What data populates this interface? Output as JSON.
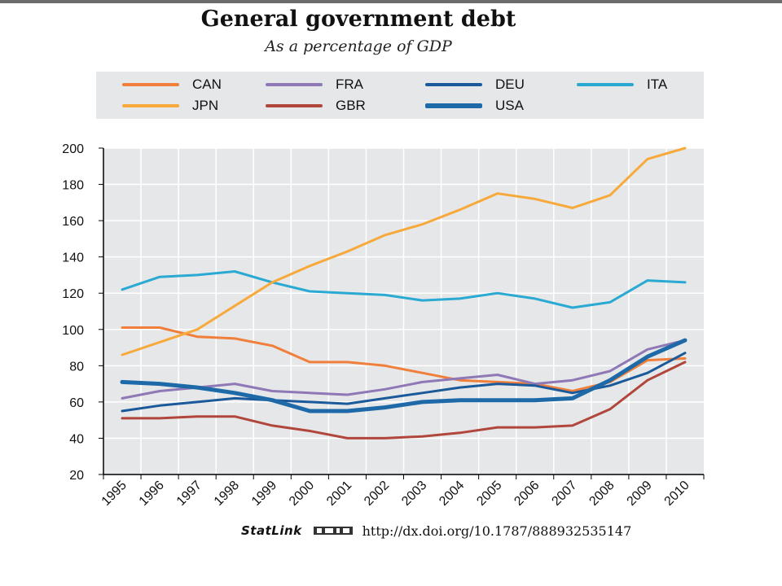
{
  "header": {
    "title": "General government debt",
    "subtitle": "As a percentage of GDP"
  },
  "footer": {
    "statlink_label": "StatLink",
    "url": "http://dx.doi.org/10.1787/888932535147"
  },
  "chart_data": {
    "type": "line",
    "title": "General government debt",
    "subtitle": "As a percentage of GDP",
    "xlabel": "",
    "ylabel": "",
    "x": [
      "1995",
      "1996",
      "1997",
      "1998",
      "1999",
      "2000",
      "2001",
      "2002",
      "2003",
      "2004",
      "2005",
      "2006",
      "2007",
      "2008",
      "2009",
      "2010"
    ],
    "ylim": [
      20,
      200
    ],
    "yticks": [
      20,
      40,
      60,
      80,
      100,
      120,
      140,
      160,
      180,
      200
    ],
    "grid": true,
    "legend_position": "top",
    "series": [
      {
        "name": "CAN",
        "color": "#f07f3c",
        "width": 3,
        "values": [
          101,
          101,
          96,
          95,
          91,
          82,
          82,
          80,
          76,
          72,
          71,
          70,
          66,
          71,
          83,
          84
        ]
      },
      {
        "name": "FRA",
        "color": "#8e78b6",
        "width": 3,
        "values": [
          62,
          66,
          68,
          70,
          66,
          65,
          64,
          67,
          71,
          73,
          75,
          70,
          72,
          77,
          89,
          94
        ]
      },
      {
        "name": "DEU",
        "color": "#1b5a9a",
        "width": 3,
        "values": [
          55,
          58,
          60,
          62,
          61,
          60,
          59,
          62,
          65,
          68,
          70,
          69,
          65,
          69,
          76,
          87
        ]
      },
      {
        "name": "ITA",
        "color": "#2aa9d2",
        "width": 3,
        "values": [
          122,
          129,
          130,
          132,
          126,
          121,
          120,
          119,
          116,
          117,
          120,
          117,
          112,
          115,
          127,
          126
        ]
      },
      {
        "name": "JPN",
        "color": "#f7a93b",
        "width": 3,
        "values": [
          86,
          93,
          100,
          113,
          126,
          135,
          143,
          152,
          158,
          166,
          175,
          172,
          167,
          174,
          194,
          200
        ]
      },
      {
        "name": "GBR",
        "color": "#b1473c",
        "width": 3,
        "values": [
          51,
          51,
          52,
          52,
          47,
          44,
          40,
          40,
          41,
          43,
          46,
          46,
          47,
          56,
          72,
          82
        ]
      },
      {
        "name": "USA",
        "color": "#1e6aa8",
        "width": 5,
        "values": [
          71,
          70,
          68,
          65,
          61,
          55,
          55,
          57,
          60,
          61,
          61,
          61,
          62,
          72,
          85,
          94
        ]
      }
    ]
  }
}
